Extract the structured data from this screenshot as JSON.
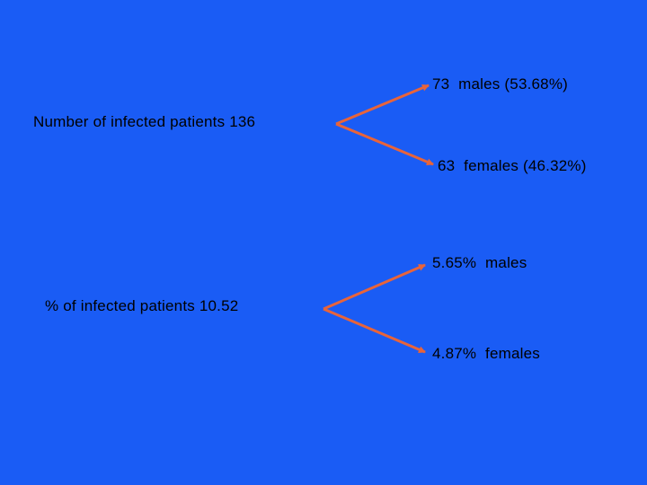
{
  "colors": {
    "background": "#1a5cf5",
    "arrow": "#e8643a",
    "text": "#000000"
  },
  "group1": {
    "source": "Number of infected patients 136",
    "top": "73  males (53.68%)",
    "bottom": "63  females (46.32%)"
  },
  "group2": {
    "source": "% of infected patients 10.52",
    "top": "5.65%  males",
    "bottom": "4.87%  females"
  }
}
